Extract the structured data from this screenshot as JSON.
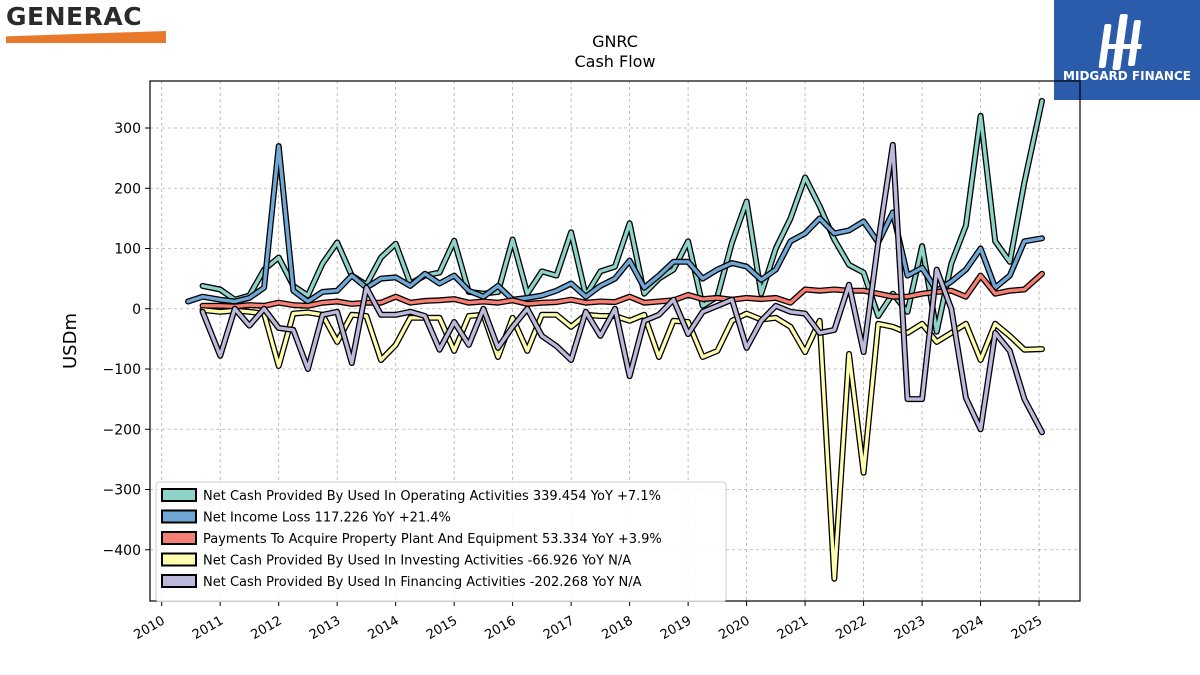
{
  "logos": {
    "left": {
      "text": "GENERAC",
      "accent": "#e8782a"
    },
    "right": {
      "text": "MIDGARD FINANCE",
      "background": "#2b5bab"
    }
  },
  "chart_data": {
    "type": "line",
    "title": "GNRC",
    "subtitle": "Cash Flow",
    "ylabel": "USDm",
    "xlabel": "",
    "xlim": [
      2009.8,
      2025.7
    ],
    "ylim": [
      -485,
      378
    ],
    "y_ticks": [
      300,
      200,
      100,
      0,
      -100,
      -200,
      -300,
      -400
    ],
    "y_tick_labels": [
      "300",
      "200",
      "100",
      "0",
      "−100",
      "−200",
      "−300",
      "−400"
    ],
    "x_ticks": [
      2010,
      2011,
      2012,
      2013,
      2014,
      2015,
      2016,
      2017,
      2018,
      2019,
      2020,
      2021,
      2022,
      2023,
      2024,
      2025
    ],
    "x_tick_labels": [
      "2010",
      "2011",
      "2012",
      "2013",
      "2014",
      "2015",
      "2016",
      "2017",
      "2018",
      "2019",
      "2020",
      "2021",
      "2022",
      "2023",
      "2024",
      "2025"
    ],
    "grid": true,
    "legend_position": "lower-left",
    "series": [
      {
        "name": "Net Cash Provided By Used In Operating Activities  339.454 YoY +7.1%",
        "color": "#8dd3c7",
        "points": [
          [
            2010.7,
            38
          ],
          [
            2011.0,
            32
          ],
          [
            2011.25,
            15
          ],
          [
            2011.5,
            22
          ],
          [
            2011.75,
            65
          ],
          [
            2012.0,
            85
          ],
          [
            2012.25,
            38
          ],
          [
            2012.5,
            22
          ],
          [
            2012.75,
            75
          ],
          [
            2013.0,
            110
          ],
          [
            2013.25,
            55
          ],
          [
            2013.5,
            40
          ],
          [
            2013.75,
            85
          ],
          [
            2014.0,
            108
          ],
          [
            2014.25,
            42
          ],
          [
            2014.5,
            55
          ],
          [
            2014.75,
            60
          ],
          [
            2015.0,
            113
          ],
          [
            2015.25,
            28
          ],
          [
            2015.5,
            25
          ],
          [
            2015.75,
            28
          ],
          [
            2016.0,
            115
          ],
          [
            2016.25,
            25
          ],
          [
            2016.5,
            62
          ],
          [
            2016.75,
            55
          ],
          [
            2017.0,
            127
          ],
          [
            2017.25,
            22
          ],
          [
            2017.5,
            62
          ],
          [
            2017.75,
            70
          ],
          [
            2018.0,
            142
          ],
          [
            2018.25,
            25
          ],
          [
            2018.5,
            50
          ],
          [
            2018.75,
            65
          ],
          [
            2019.0,
            112
          ],
          [
            2019.25,
            5
          ],
          [
            2019.5,
            20
          ],
          [
            2019.75,
            110
          ],
          [
            2020.0,
            178
          ],
          [
            2020.25,
            25
          ],
          [
            2020.5,
            100
          ],
          [
            2020.75,
            150
          ],
          [
            2021.0,
            218
          ],
          [
            2021.25,
            170
          ],
          [
            2021.5,
            115
          ],
          [
            2021.75,
            73
          ],
          [
            2022.0,
            60
          ],
          [
            2022.25,
            -12
          ],
          [
            2022.5,
            25
          ],
          [
            2022.75,
            -5
          ],
          [
            2023.0,
            104
          ],
          [
            2023.25,
            -38
          ],
          [
            2023.5,
            75
          ],
          [
            2023.75,
            138
          ],
          [
            2024.0,
            320
          ],
          [
            2024.25,
            112
          ],
          [
            2024.5,
            78
          ],
          [
            2024.75,
            210
          ],
          [
            2025.05,
            345
          ]
        ]
      },
      {
        "name": "Net Income Loss  117.226 YoY +21.4%",
        "color": "#6fa8d6",
        "points": [
          [
            2010.45,
            12
          ],
          [
            2010.7,
            20
          ],
          [
            2011.0,
            15
          ],
          [
            2011.25,
            12
          ],
          [
            2011.5,
            18
          ],
          [
            2011.75,
            35
          ],
          [
            2012.0,
            270
          ],
          [
            2012.25,
            30
          ],
          [
            2012.5,
            12
          ],
          [
            2012.75,
            28
          ],
          [
            2013.0,
            30
          ],
          [
            2013.25,
            55
          ],
          [
            2013.5,
            35
          ],
          [
            2013.75,
            50
          ],
          [
            2014.0,
            52
          ],
          [
            2014.25,
            38
          ],
          [
            2014.5,
            58
          ],
          [
            2014.75,
            42
          ],
          [
            2015.0,
            55
          ],
          [
            2015.25,
            30
          ],
          [
            2015.5,
            20
          ],
          [
            2015.75,
            38
          ],
          [
            2016.0,
            15
          ],
          [
            2016.25,
            18
          ],
          [
            2016.5,
            22
          ],
          [
            2016.75,
            30
          ],
          [
            2017.0,
            42
          ],
          [
            2017.25,
            20
          ],
          [
            2017.5,
            38
          ],
          [
            2017.75,
            50
          ],
          [
            2018.0,
            80
          ],
          [
            2018.25,
            35
          ],
          [
            2018.5,
            55
          ],
          [
            2018.75,
            78
          ],
          [
            2019.0,
            78
          ],
          [
            2019.25,
            50
          ],
          [
            2019.5,
            65
          ],
          [
            2019.75,
            76
          ],
          [
            2020.0,
            70
          ],
          [
            2020.25,
            48
          ],
          [
            2020.5,
            65
          ],
          [
            2020.75,
            112
          ],
          [
            2021.0,
            125
          ],
          [
            2021.25,
            150
          ],
          [
            2021.5,
            125
          ],
          [
            2021.75,
            130
          ],
          [
            2022.0,
            145
          ],
          [
            2022.25,
            110
          ],
          [
            2022.5,
            160
          ],
          [
            2022.75,
            55
          ],
          [
            2023.0,
            68
          ],
          [
            2023.25,
            30
          ],
          [
            2023.5,
            45
          ],
          [
            2023.75,
            65
          ],
          [
            2024.0,
            100
          ],
          [
            2024.25,
            35
          ],
          [
            2024.5,
            55
          ],
          [
            2024.75,
            112
          ],
          [
            2025.05,
            117
          ]
        ]
      },
      {
        "name": "Payments To Acquire Property Plant And Equipment  53.334 YoY +3.9%",
        "color": "#f47f72",
        "points": [
          [
            2010.7,
            5
          ],
          [
            2011.0,
            5
          ],
          [
            2011.25,
            4
          ],
          [
            2011.5,
            6
          ],
          [
            2011.75,
            5
          ],
          [
            2012.0,
            10
          ],
          [
            2012.25,
            6
          ],
          [
            2012.5,
            5
          ],
          [
            2012.75,
            10
          ],
          [
            2013.0,
            12
          ],
          [
            2013.25,
            8
          ],
          [
            2013.5,
            10
          ],
          [
            2013.75,
            10
          ],
          [
            2014.0,
            20
          ],
          [
            2014.25,
            10
          ],
          [
            2014.5,
            13
          ],
          [
            2014.75,
            14
          ],
          [
            2015.0,
            16
          ],
          [
            2015.25,
            10
          ],
          [
            2015.5,
            12
          ],
          [
            2015.75,
            10
          ],
          [
            2016.0,
            14
          ],
          [
            2016.25,
            8
          ],
          [
            2016.5,
            10
          ],
          [
            2016.75,
            11
          ],
          [
            2017.0,
            15
          ],
          [
            2017.25,
            10
          ],
          [
            2017.5,
            12
          ],
          [
            2017.75,
            11
          ],
          [
            2018.0,
            20
          ],
          [
            2018.25,
            10
          ],
          [
            2018.5,
            12
          ],
          [
            2018.75,
            14
          ],
          [
            2019.0,
            23
          ],
          [
            2019.25,
            16
          ],
          [
            2019.5,
            18
          ],
          [
            2019.75,
            15
          ],
          [
            2020.0,
            18
          ],
          [
            2020.25,
            16
          ],
          [
            2020.5,
            18
          ],
          [
            2020.75,
            10
          ],
          [
            2021.0,
            32
          ],
          [
            2021.25,
            30
          ],
          [
            2021.5,
            32
          ],
          [
            2021.75,
            30
          ],
          [
            2022.0,
            30
          ],
          [
            2022.25,
            25
          ],
          [
            2022.5,
            20
          ],
          [
            2022.75,
            20
          ],
          [
            2023.0,
            25
          ],
          [
            2023.25,
            28
          ],
          [
            2023.5,
            30
          ],
          [
            2023.75,
            20
          ],
          [
            2024.0,
            55
          ],
          [
            2024.25,
            25
          ],
          [
            2024.5,
            30
          ],
          [
            2024.75,
            32
          ],
          [
            2025.05,
            58
          ]
        ]
      },
      {
        "name": "Net Cash Provided By Used In Investing Activities  -66.926 YoY N/A",
        "color": "#fdfdb0",
        "points": [
          [
            2010.7,
            -2
          ],
          [
            2011.0,
            -5
          ],
          [
            2011.25,
            -3
          ],
          [
            2011.5,
            -5
          ],
          [
            2011.75,
            -8
          ],
          [
            2012.0,
            -95
          ],
          [
            2012.25,
            -8
          ],
          [
            2012.5,
            -6
          ],
          [
            2012.75,
            -10
          ],
          [
            2013.0,
            -55
          ],
          [
            2013.25,
            -10
          ],
          [
            2013.5,
            -12
          ],
          [
            2013.75,
            -85
          ],
          [
            2014.0,
            -60
          ],
          [
            2014.25,
            -15
          ],
          [
            2014.5,
            -15
          ],
          [
            2014.75,
            -15
          ],
          [
            2015.0,
            -70
          ],
          [
            2015.25,
            -12
          ],
          [
            2015.5,
            -10
          ],
          [
            2015.75,
            -80
          ],
          [
            2016.0,
            -15
          ],
          [
            2016.25,
            -70
          ],
          [
            2016.5,
            -10
          ],
          [
            2016.75,
            -10
          ],
          [
            2017.0,
            -30
          ],
          [
            2017.25,
            -10
          ],
          [
            2017.5,
            -12
          ],
          [
            2017.75,
            -12
          ],
          [
            2018.0,
            -20
          ],
          [
            2018.25,
            -10
          ],
          [
            2018.5,
            -80
          ],
          [
            2018.75,
            -20
          ],
          [
            2019.0,
            -22
          ],
          [
            2019.25,
            -80
          ],
          [
            2019.5,
            -70
          ],
          [
            2019.75,
            -20
          ],
          [
            2020.0,
            -8
          ],
          [
            2020.25,
            -18
          ],
          [
            2020.5,
            -15
          ],
          [
            2020.75,
            -30
          ],
          [
            2021.0,
            -72
          ],
          [
            2021.25,
            -20
          ],
          [
            2021.5,
            -448
          ],
          [
            2021.75,
            -75
          ],
          [
            2022.0,
            -272
          ],
          [
            2022.25,
            -25
          ],
          [
            2022.5,
            -30
          ],
          [
            2022.75,
            -40
          ],
          [
            2023.0,
            -25
          ],
          [
            2023.25,
            -55
          ],
          [
            2023.5,
            -40
          ],
          [
            2023.75,
            -25
          ],
          [
            2024.0,
            -85
          ],
          [
            2024.25,
            -25
          ],
          [
            2024.5,
            -45
          ],
          [
            2024.75,
            -68
          ],
          [
            2025.05,
            -67
          ]
        ]
      },
      {
        "name": "Net Cash Provided By Used In Financing Activities  -202.268 YoY N/A",
        "color": "#bcb9dc",
        "points": [
          [
            2010.7,
            -5
          ],
          [
            2011.0,
            -78
          ],
          [
            2011.25,
            0
          ],
          [
            2011.5,
            -28
          ],
          [
            2011.75,
            0
          ],
          [
            2012.0,
            -32
          ],
          [
            2012.25,
            -35
          ],
          [
            2012.5,
            -100
          ],
          [
            2012.75,
            -10
          ],
          [
            2013.0,
            -5
          ],
          [
            2013.25,
            -90
          ],
          [
            2013.5,
            35
          ],
          [
            2013.75,
            -10
          ],
          [
            2014.0,
            -10
          ],
          [
            2014.25,
            -5
          ],
          [
            2014.5,
            -12
          ],
          [
            2014.75,
            -68
          ],
          [
            2015.0,
            -22
          ],
          [
            2015.25,
            -60
          ],
          [
            2015.5,
            0
          ],
          [
            2015.75,
            -65
          ],
          [
            2016.0,
            -30
          ],
          [
            2016.25,
            0
          ],
          [
            2016.5,
            -45
          ],
          [
            2016.75,
            -62
          ],
          [
            2017.0,
            -85
          ],
          [
            2017.25,
            -5
          ],
          [
            2017.5,
            -45
          ],
          [
            2017.75,
            0
          ],
          [
            2018.0,
            -112
          ],
          [
            2018.25,
            -20
          ],
          [
            2018.5,
            -10
          ],
          [
            2018.75,
            15
          ],
          [
            2019.0,
            -42
          ],
          [
            2019.25,
            -5
          ],
          [
            2019.5,
            5
          ],
          [
            2019.75,
            15
          ],
          [
            2020.0,
            -65
          ],
          [
            2020.25,
            -20
          ],
          [
            2020.5,
            5
          ],
          [
            2020.75,
            -5
          ],
          [
            2021.0,
            -8
          ],
          [
            2021.25,
            -40
          ],
          [
            2021.5,
            -35
          ],
          [
            2021.75,
            40
          ],
          [
            2022.0,
            -72
          ],
          [
            2022.25,
            110
          ],
          [
            2022.5,
            272
          ],
          [
            2022.75,
            -150
          ],
          [
            2023.0,
            -150
          ],
          [
            2023.25,
            65
          ],
          [
            2023.5,
            0
          ],
          [
            2023.75,
            -148
          ],
          [
            2024.0,
            -200
          ],
          [
            2024.25,
            -40
          ],
          [
            2024.5,
            -70
          ],
          [
            2024.75,
            -150
          ],
          [
            2025.05,
            -205
          ]
        ]
      }
    ]
  }
}
